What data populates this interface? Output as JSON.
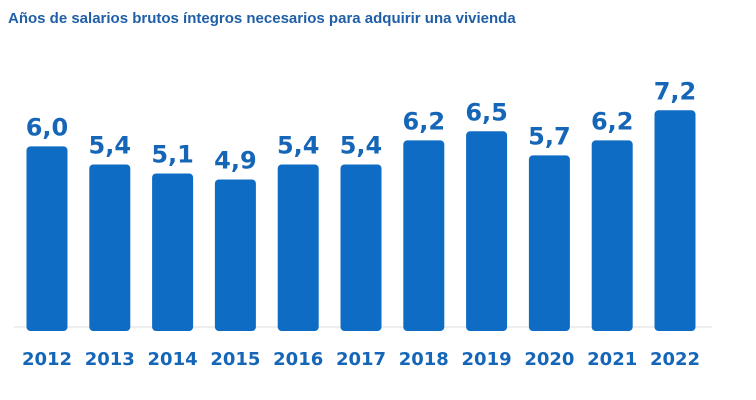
{
  "chart_data": {
    "type": "bar",
    "title": "Años de salarios brutos íntegros necesarios para adquirir una vivienda",
    "categories": [
      "2012",
      "2013",
      "2014",
      "2015",
      "2016",
      "2017",
      "2018",
      "2019",
      "2020",
      "2021",
      "2022"
    ],
    "values": [
      6.0,
      5.4,
      5.1,
      4.9,
      5.4,
      5.4,
      6.2,
      6.5,
      5.7,
      6.2,
      7.2
    ],
    "value_labels": [
      "6,0",
      "5,4",
      "5,1",
      "4,9",
      "5,4",
      "5,4",
      "6,2",
      "6,5",
      "5,7",
      "6,2",
      "7,2"
    ],
    "xlabel": "",
    "ylabel": "",
    "ylim": [
      0,
      7.2
    ],
    "grid": false,
    "legend": "none",
    "colors": {
      "bar": "#0e6cc4",
      "label": "#1666b8",
      "title": "#1f5fa8",
      "axis": "#dddddd"
    }
  }
}
